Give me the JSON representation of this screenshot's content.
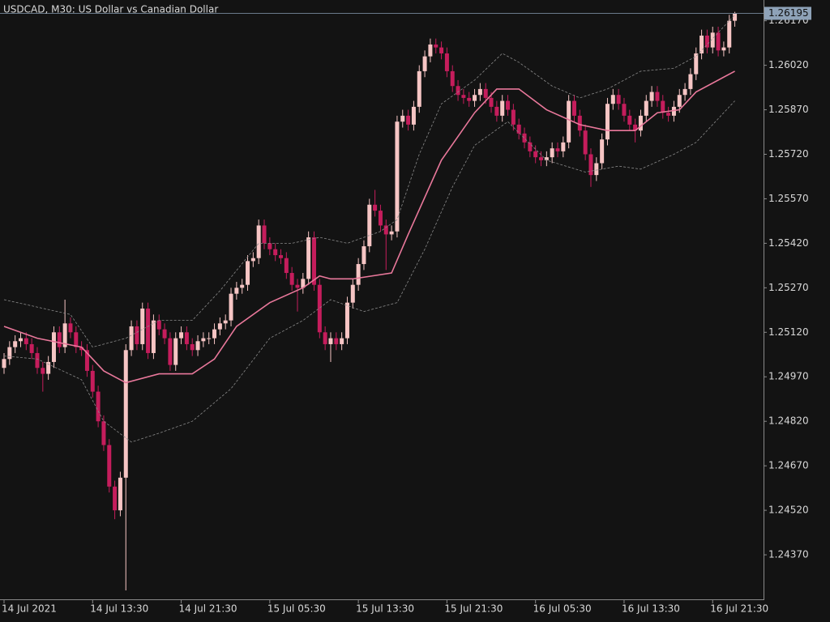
{
  "chart_data": {
    "type": "candlestick",
    "title": "USDCAD, M30:  US Dollar vs Canadian Dollar",
    "categories": [
      "14 Jul 2021",
      null,
      null,
      null,
      null,
      null,
      null,
      null,
      null,
      null,
      null,
      null,
      null,
      null,
      null,
      null,
      "14 Jul 13:30",
      null,
      null,
      null,
      null,
      null,
      null,
      null,
      null,
      null,
      null,
      null,
      null,
      null,
      null,
      null,
      "14 Jul 21:30",
      null,
      null,
      null,
      null,
      null,
      null,
      null,
      null,
      null,
      null,
      null,
      null,
      null,
      null,
      null,
      "15 Jul 05:30",
      null,
      null,
      null,
      null,
      null,
      null,
      null,
      null,
      null,
      null,
      null,
      null,
      null,
      null,
      null,
      "15 Jul 13:30",
      null,
      null,
      null,
      null,
      null,
      null,
      null,
      null,
      null,
      null,
      null,
      null,
      null,
      null,
      null,
      "15 Jul 21:30",
      null,
      null,
      null,
      null,
      null,
      null,
      null,
      null,
      null,
      null,
      null,
      null,
      null,
      null,
      null,
      "16 Jul 05:30",
      null,
      null,
      null,
      null,
      null,
      null,
      null,
      null,
      null,
      null,
      null,
      null,
      null,
      null,
      null,
      "16 Jul 13:30",
      null,
      null,
      null,
      null,
      null,
      null,
      null,
      null,
      null,
      null,
      null,
      null,
      null,
      null,
      null,
      "16 Jul 21:30",
      null,
      null,
      null,
      null
    ],
    "open": [
      1.25,
      1.2503,
      1.2507,
      1.2509,
      1.251,
      1.2508,
      1.2505,
      1.25,
      1.2498,
      1.2502,
      1.2512,
      1.2507,
      1.2515,
      1.2512,
      1.2507,
      1.2506,
      1.2499,
      1.2492,
      1.2482,
      1.2474,
      1.246,
      1.2452,
      1.2463,
      1.2506,
      1.2514,
      1.2508,
      1.252,
      1.2505,
      1.2516,
      1.2513,
      1.251,
      1.2501,
      1.251,
      1.2512,
      1.2508,
      1.2506,
      1.2509,
      1.251,
      1.251,
      1.2513,
      1.2515,
      1.2516,
      1.2525,
      1.2527,
      1.2528,
      1.2536,
      1.2537,
      1.2548,
      1.2542,
      1.254,
      1.2538,
      1.2537,
      1.2532,
      1.2528,
      1.2527,
      1.253,
      1.2544,
      1.2528,
      1.2512,
      1.2508,
      1.251,
      1.2508,
      1.251,
      1.2522,
      1.2528,
      1.2535,
      1.2541,
      1.2555,
      1.2553,
      1.2548,
      1.2545,
      1.2546,
      1.2583,
      1.2585,
      1.2582,
      1.2588,
      1.26,
      1.2605,
      1.2609,
      1.2608,
      1.2606,
      1.26,
      1.2595,
      1.2592,
      1.2591,
      1.259,
      1.2592,
      1.2594,
      1.2591,
      1.2588,
      1.2585,
      1.259,
      1.2587,
      1.2582,
      1.2579,
      1.2576,
      1.2573,
      1.2571,
      1.257,
      1.2571,
      1.2574,
      1.2573,
      1.2576,
      1.259,
      1.2585,
      1.258,
      1.2572,
      1.2565,
      1.2569,
      1.2577,
      1.2589,
      1.2592,
      1.2589,
      1.2585,
      1.2582,
      1.258,
      1.2585,
      1.259,
      1.2593,
      1.259,
      1.2586,
      1.2585,
      1.2588,
      1.2592,
      1.2594,
      1.2599,
      1.2606,
      1.2612,
      1.2608,
      1.2613,
      1.2607,
      1.2608,
      1.2617
    ],
    "high": [
      1.2505,
      1.2509,
      1.2511,
      1.2512,
      1.2512,
      1.251,
      1.2507,
      1.2502,
      1.2504,
      1.2514,
      1.2514,
      1.2523,
      1.2517,
      1.2514,
      1.2509,
      1.2508,
      1.2501,
      1.2494,
      1.2484,
      1.2476,
      1.2462,
      1.2465,
      1.2508,
      1.2516,
      1.2516,
      1.2522,
      1.2522,
      1.2518,
      1.2518,
      1.2515,
      1.2512,
      1.2512,
      1.2514,
      1.2514,
      1.251,
      1.2511,
      1.2512,
      1.2512,
      1.2515,
      1.2517,
      1.2518,
      1.2527,
      1.2529,
      1.253,
      1.2538,
      1.2539,
      1.255,
      1.255,
      1.2544,
      1.2542,
      1.254,
      1.2539,
      1.2534,
      1.253,
      1.2532,
      1.2546,
      1.2546,
      1.253,
      1.2514,
      1.2512,
      1.2512,
      1.2512,
      1.2524,
      1.253,
      1.2537,
      1.2543,
      1.2557,
      1.256,
      1.2555,
      1.255,
      1.2548,
      1.2585,
      1.2587,
      1.2587,
      1.259,
      1.2602,
      1.2607,
      1.2611,
      1.2611,
      1.261,
      1.2608,
      1.2602,
      1.2597,
      1.2594,
      1.2593,
      1.2594,
      1.2596,
      1.2596,
      1.2593,
      1.259,
      1.2592,
      1.2592,
      1.2589,
      1.2584,
      1.2581,
      1.2578,
      1.2575,
      1.2573,
      1.2573,
      1.2576,
      1.2576,
      1.2578,
      1.2592,
      1.2592,
      1.2587,
      1.2582,
      1.2574,
      1.2571,
      1.2579,
      1.2591,
      1.2594,
      1.2594,
      1.2591,
      1.2587,
      1.2584,
      1.2587,
      1.2592,
      1.2595,
      1.2595,
      1.2592,
      1.2588,
      1.259,
      1.2594,
      1.2596,
      1.2601,
      1.2608,
      1.2614,
      1.2614,
      1.2615,
      1.2615,
      1.261,
      1.2619,
      1.262
    ],
    "low": [
      1.2498,
      1.2501,
      1.2505,
      1.2507,
      1.2506,
      1.2503,
      1.2498,
      1.2492,
      1.2496,
      1.25,
      1.2505,
      1.2505,
      1.251,
      1.2505,
      1.2504,
      1.2497,
      1.249,
      1.248,
      1.2472,
      1.2458,
      1.2449,
      1.245,
      1.2425,
      1.2504,
      1.2506,
      1.2506,
      1.2503,
      1.2503,
      1.2511,
      1.2508,
      1.2499,
      1.2499,
      1.2508,
      1.2506,
      1.2504,
      1.2504,
      1.2507,
      1.2508,
      1.2508,
      1.2511,
      1.2513,
      1.2514,
      1.2523,
      1.2525,
      1.2526,
      1.2534,
      1.2535,
      1.254,
      1.2538,
      1.2536,
      1.2535,
      1.253,
      1.2526,
      1.2519,
      1.2525,
      1.2528,
      1.2526,
      1.251,
      1.2506,
      1.2502,
      1.2506,
      1.2506,
      1.2508,
      1.252,
      1.2526,
      1.2533,
      1.2539,
      1.2551,
      1.2546,
      1.2533,
      1.2543,
      1.2544,
      1.2581,
      1.258,
      1.258,
      1.2586,
      1.2598,
      1.2603,
      1.2606,
      1.2604,
      1.2598,
      1.2593,
      1.259,
      1.2589,
      1.2588,
      1.2588,
      1.259,
      1.2589,
      1.2586,
      1.2583,
      1.2583,
      1.2585,
      1.258,
      1.2577,
      1.2574,
      1.2571,
      1.2569,
      1.2568,
      1.2568,
      1.2569,
      1.2571,
      1.2571,
      1.2574,
      1.2583,
      1.2578,
      1.257,
      1.2561,
      1.2563,
      1.2567,
      1.2575,
      1.2587,
      1.2587,
      1.2583,
      1.258,
      1.2576,
      1.2578,
      1.2583,
      1.2588,
      1.2588,
      1.2584,
      1.2583,
      1.2583,
      1.2586,
      1.259,
      1.2592,
      1.2597,
      1.2604,
      1.2606,
      1.2606,
      1.2605,
      1.2605,
      1.2606,
      1.2615
    ],
    "close": [
      1.2503,
      1.2507,
      1.2509,
      1.251,
      1.2508,
      1.2505,
      1.25,
      1.2498,
      1.2502,
      1.2512,
      1.2507,
      1.2515,
      1.2512,
      1.2507,
      1.2506,
      1.2499,
      1.2492,
      1.2482,
      1.2474,
      1.246,
      1.2452,
      1.2463,
      1.2506,
      1.2514,
      1.2508,
      1.252,
      1.2505,
      1.2516,
      1.2513,
      1.251,
      1.2501,
      1.251,
      1.2512,
      1.2508,
      1.2506,
      1.2509,
      1.251,
      1.251,
      1.2513,
      1.2515,
      1.2516,
      1.2525,
      1.2527,
      1.2528,
      1.2536,
      1.2537,
      1.2548,
      1.2542,
      1.254,
      1.2538,
      1.2537,
      1.2532,
      1.2528,
      1.2527,
      1.253,
      1.2544,
      1.2528,
      1.2512,
      1.2508,
      1.251,
      1.2508,
      1.251,
      1.2522,
      1.2528,
      1.2535,
      1.2541,
      1.2555,
      1.2553,
      1.2548,
      1.2545,
      1.2546,
      1.2583,
      1.2585,
      1.2582,
      1.2588,
      1.26,
      1.2605,
      1.2609,
      1.2608,
      1.2606,
      1.26,
      1.2595,
      1.2592,
      1.2591,
      1.259,
      1.2592,
      1.2594,
      1.2591,
      1.2588,
      1.2585,
      1.259,
      1.2587,
      1.2582,
      1.2579,
      1.2576,
      1.2573,
      1.2571,
      1.257,
      1.2571,
      1.2574,
      1.2573,
      1.2576,
      1.259,
      1.2585,
      1.258,
      1.2572,
      1.2565,
      1.2569,
      1.2577,
      1.2589,
      1.2592,
      1.2589,
      1.2585,
      1.2582,
      1.258,
      1.2585,
      1.259,
      1.2593,
      1.259,
      1.2586,
      1.2585,
      1.2588,
      1.2592,
      1.2594,
      1.2599,
      1.2606,
      1.2612,
      1.2608,
      1.2613,
      1.2607,
      1.2608,
      1.2617,
      1.26195
    ],
    "up_color": "#f6c5c4",
    "down_color": "#c51d5c",
    "lines": [
      {
        "color": "#e9789b",
        "dashed": false,
        "x": [
          0,
          6,
          14,
          18,
          22,
          28,
          34,
          38,
          42,
          48,
          54,
          57,
          59,
          63,
          70,
          73,
          79,
          85,
          89,
          93,
          98,
          104,
          109,
          114,
          118,
          122,
          125,
          132
        ],
        "values": [
          1.2514,
          1.251,
          1.2507,
          1.2499,
          1.2495,
          1.2498,
          1.2498,
          1.2503,
          1.2514,
          1.2522,
          1.2527,
          1.2531,
          1.253,
          1.253,
          1.2532,
          1.2545,
          1.257,
          1.2586,
          1.2594,
          1.2594,
          1.2587,
          1.2582,
          1.258,
          1.258,
          1.2586,
          1.2587,
          1.2593,
          1.26
        ]
      },
      {
        "color": "#8a8a8a",
        "dashed": true,
        "x": [
          0,
          12,
          16,
          22,
          28,
          34,
          39,
          46,
          52,
          57,
          62,
          68,
          71,
          75,
          79,
          85,
          90,
          93,
          99,
          104,
          109,
          115,
          121,
          125,
          132
        ],
        "values": [
          1.2523,
          1.2518,
          1.2507,
          1.251,
          1.2516,
          1.2516,
          1.2526,
          1.2542,
          1.2542,
          1.2544,
          1.2542,
          1.2546,
          1.255,
          1.2572,
          1.2589,
          1.2597,
          1.2606,
          1.2603,
          1.2595,
          1.2591,
          1.2594,
          1.26,
          1.2601,
          1.2605,
          1.2619
        ]
      },
      {
        "color": "#8a8a8a",
        "dashed": true,
        "x": [
          0,
          6,
          14,
          18,
          23,
          28,
          34,
          41,
          48,
          54,
          59,
          65,
          71,
          76,
          81,
          85,
          91,
          98,
          105,
          111,
          115,
          121,
          125,
          132
        ],
        "values": [
          1.2504,
          1.2503,
          1.2496,
          1.2482,
          1.2475,
          1.2478,
          1.2482,
          1.2493,
          1.251,
          1.2516,
          1.2523,
          1.2519,
          1.2522,
          1.254,
          1.2561,
          1.2575,
          1.2583,
          1.257,
          1.2566,
          1.2568,
          1.2567,
          1.2572,
          1.2576,
          1.259
        ]
      }
    ],
    "last_price": {
      "value": 1.26195,
      "label": "1.26195"
    },
    "ylim": [
      1.2422,
      1.2624
    ],
    "yticks": [
      {
        "value": 1.2437,
        "label": "1.24370"
      },
      {
        "value": 1.2452,
        "label": "1.24520"
      },
      {
        "value": 1.2467,
        "label": "1.24670"
      },
      {
        "value": 1.2482,
        "label": "1.24820"
      },
      {
        "value": 1.2497,
        "label": "1.24970"
      },
      {
        "value": 1.2512,
        "label": "1.25120"
      },
      {
        "value": 1.2527,
        "label": "1.25270"
      },
      {
        "value": 1.2542,
        "label": "1.25420"
      },
      {
        "value": 1.2557,
        "label": "1.25570"
      },
      {
        "value": 1.2572,
        "label": "1.25720"
      },
      {
        "value": 1.2587,
        "label": "1.25870"
      },
      {
        "value": 1.2602,
        "label": "1.26020"
      },
      {
        "value": 1.2617,
        "label": "1.26170"
      }
    ]
  }
}
